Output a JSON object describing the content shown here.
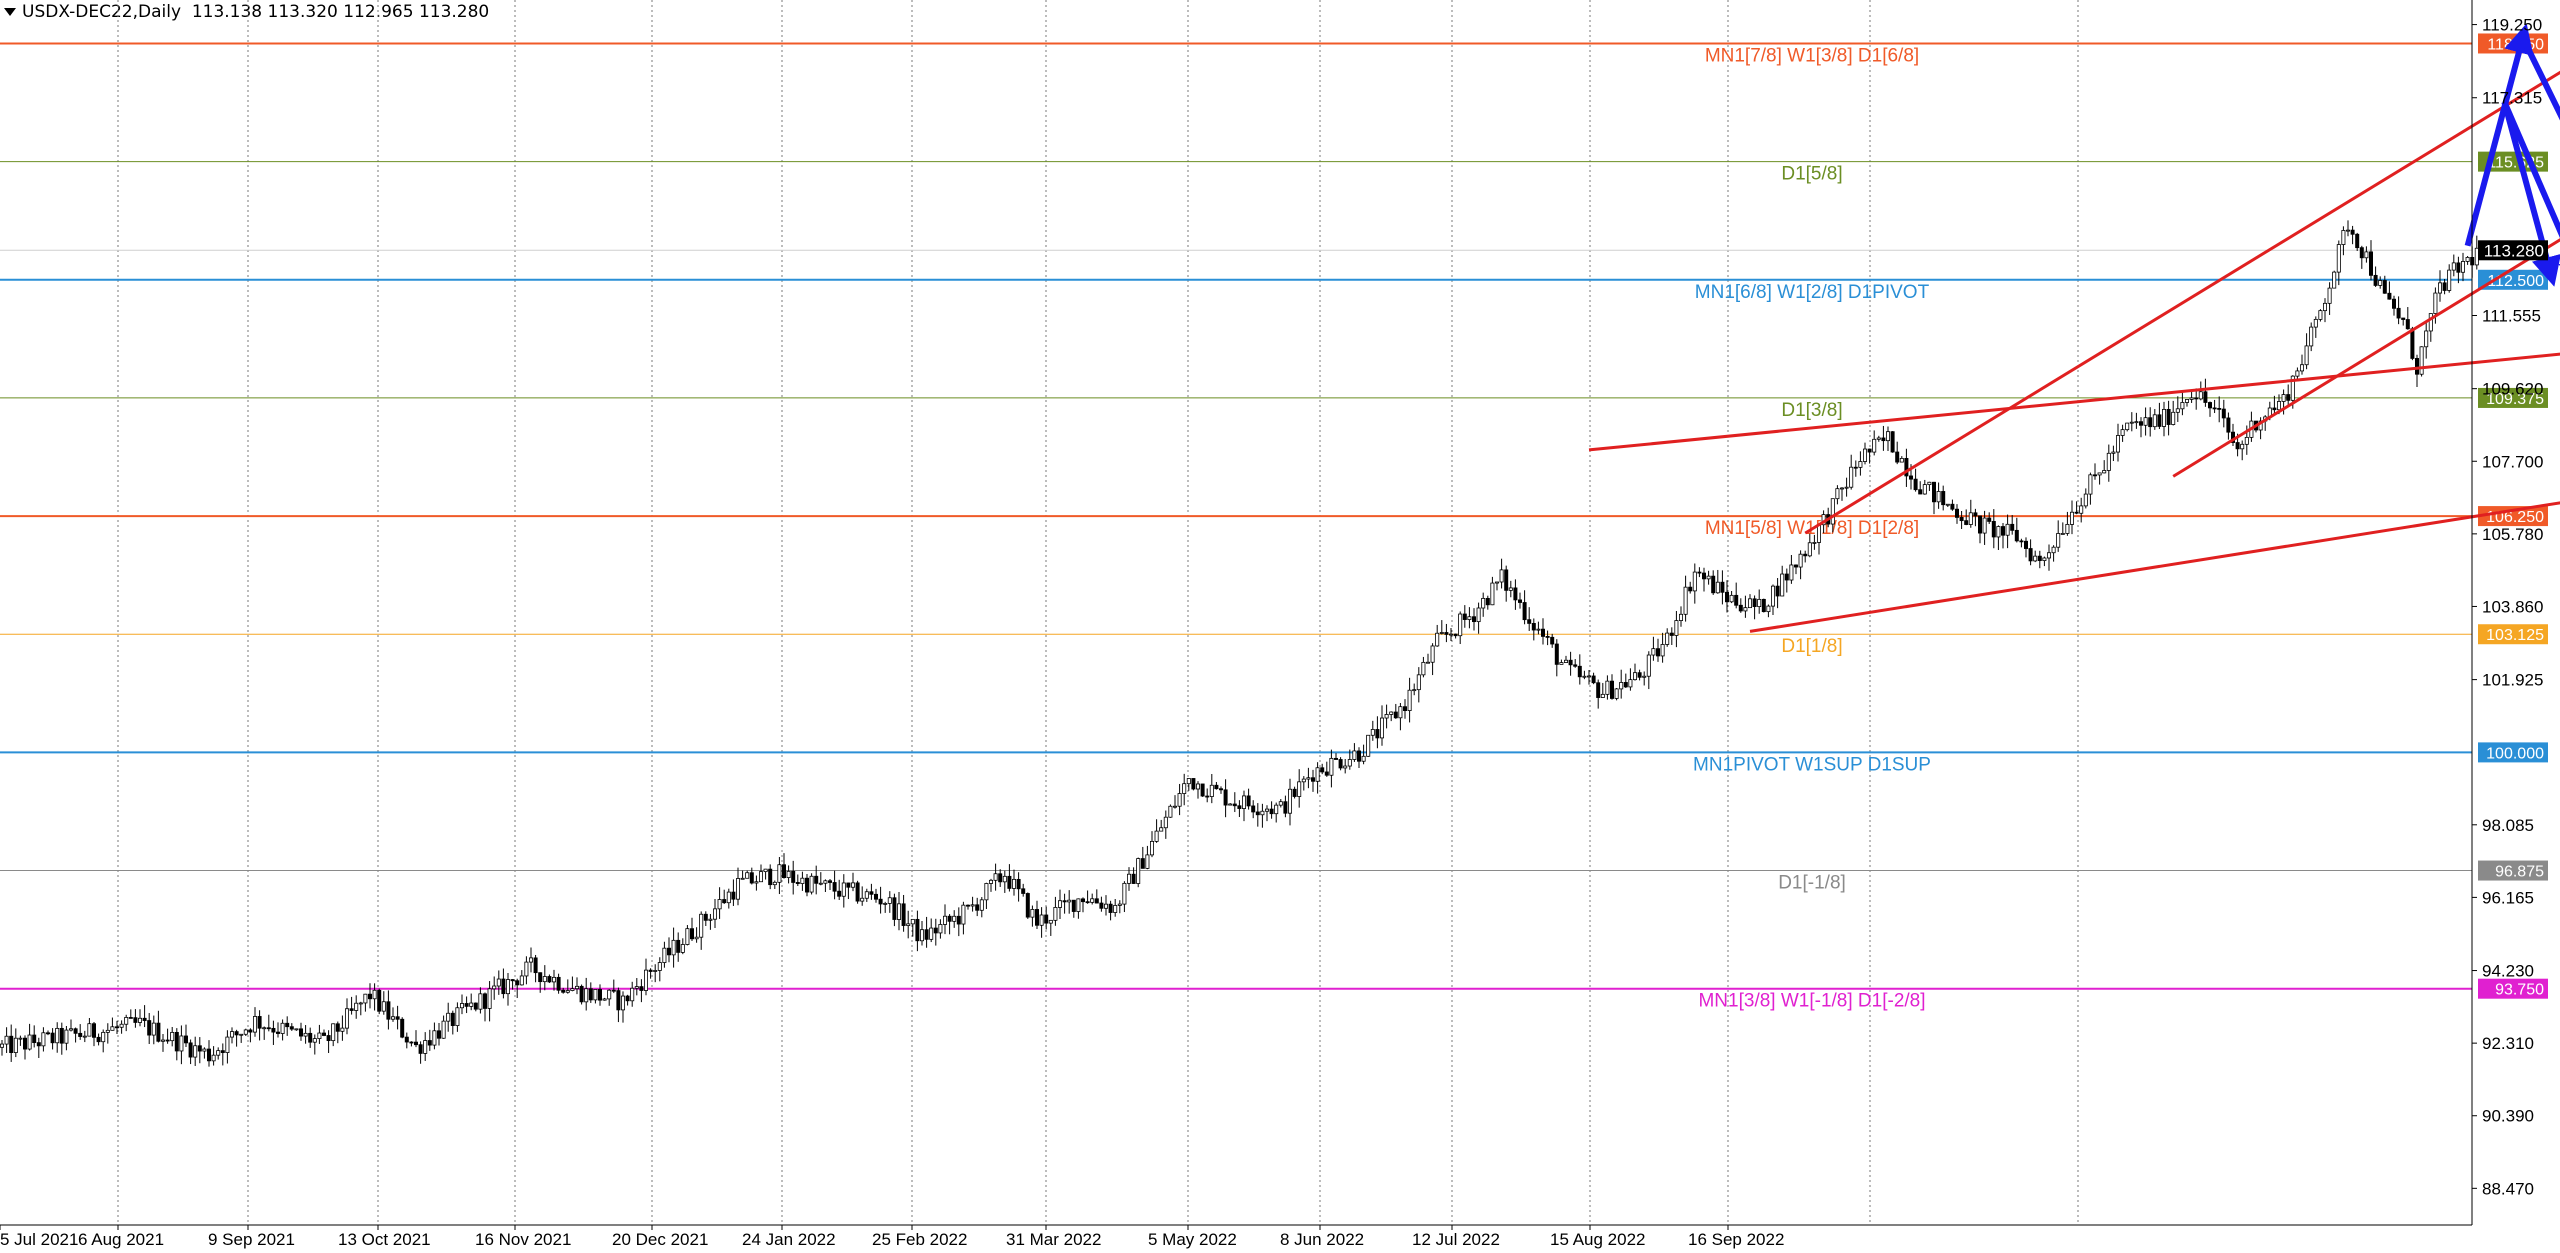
{
  "header": {
    "symbol": "USDX-DEC22,Daily",
    "ohlc": "113.138 113.320 112.965 113.280"
  },
  "chart_data": {
    "type": "candlestick",
    "ylim": [
      87.5,
      119.9
    ],
    "y_ticks": [
      "119.250",
      "117.315",
      "111.555",
      "109.620",
      "107.700",
      "105.780",
      "103.860",
      "101.925",
      "98.085",
      "96.165",
      "94.230",
      "92.310",
      "90.390",
      "88.470"
    ],
    "last_price": {
      "label": "113.280",
      "value": 113.28
    },
    "x_ticks": [
      "5 Jul 2021",
      "6 Aug 2021",
      "9 Sep 2021",
      "13 Oct 2021",
      "16 Nov 2021",
      "20 Dec 2021",
      "24 Jan 2022",
      "25 Feb 2022",
      "31 Mar 2022",
      "5 May 2022",
      "8 Jun 2022",
      "12 Jul 2022",
      "15 Aug 2022",
      "16 Sep 2022"
    ],
    "levels": [
      {
        "value": 118.75,
        "price_label": "118.750",
        "text": "MN1[7/8] W1[3/8] D1[6/8]",
        "color": "#f05a28",
        "width": 2
      },
      {
        "value": 115.625,
        "price_label": "115.625",
        "text": "D1[5/8]",
        "color": "#6b8e23",
        "width": 1
      },
      {
        "value": 112.5,
        "price_label": "112.500",
        "text": "MN1[6/8] W1[2/8] D1PIVOT",
        "color": "#2a8fd6",
        "width": 2
      },
      {
        "value": 109.375,
        "price_label": "109.375",
        "text": "D1[3/8]",
        "color": "#6b8e23",
        "width": 1
      },
      {
        "value": 106.25,
        "price_label": "106.250",
        "text": "MN1[5/8] W1[1/8] D1[2/8]",
        "color": "#f05a28",
        "width": 2
      },
      {
        "value": 103.125,
        "price_label": "103.125",
        "text": "D1[1/8]",
        "color": "#f5a623",
        "width": 1
      },
      {
        "value": 100.0,
        "price_label": "100.000",
        "text": "MN1PIVOT W1SUP D1SUP",
        "color": "#2a8fd6",
        "width": 2
      },
      {
        "value": 96.875,
        "price_label": "96.875",
        "text": "D1[-1/8]",
        "color": "#8a8a8a",
        "width": 1
      },
      {
        "value": 93.75,
        "price_label": "93.750",
        "text": "MN1[3/8] W1[-1/8] D1[-2/8]",
        "color": "#e020d0",
        "width": 2
      }
    ],
    "path_points": [
      [
        0,
        92.2
      ],
      [
        30,
        92.8
      ],
      [
        45,
        92.0
      ],
      [
        55,
        92.9
      ],
      [
        70,
        92.3
      ],
      [
        80,
        93.6
      ],
      [
        90,
        92.2
      ],
      [
        100,
        93.1
      ],
      [
        115,
        94.3
      ],
      [
        125,
        93.7
      ],
      [
        135,
        93.4
      ],
      [
        140,
        94.1
      ],
      [
        152,
        95.5
      ],
      [
        160,
        96.5
      ],
      [
        168,
        96.8
      ],
      [
        180,
        96.4
      ],
      [
        192,
        96.1
      ],
      [
        200,
        95.1
      ],
      [
        210,
        95.8
      ],
      [
        218,
        96.8
      ],
      [
        225,
        95.5
      ],
      [
        235,
        96.2
      ],
      [
        242,
        95.9
      ],
      [
        250,
        97.6
      ],
      [
        258,
        99.3
      ],
      [
        268,
        98.7
      ],
      [
        278,
        98.5
      ],
      [
        285,
        99.5
      ],
      [
        295,
        100.0
      ],
      [
        305,
        101.3
      ],
      [
        312,
        102.9
      ],
      [
        320,
        103.7
      ],
      [
        326,
        104.6
      ],
      [
        333,
        103.4
      ],
      [
        340,
        102.2
      ],
      [
        348,
        101.6
      ],
      [
        356,
        102.0
      ],
      [
        362,
        103.0
      ],
      [
        368,
        104.8
      ],
      [
        375,
        104.1
      ],
      [
        382,
        103.8
      ],
      [
        390,
        105.0
      ],
      [
        398,
        106.5
      ],
      [
        404,
        107.8
      ],
      [
        410,
        108.3
      ],
      [
        416,
        107.2
      ],
      [
        422,
        106.6
      ],
      [
        430,
        106.0
      ],
      [
        438,
        105.7
      ],
      [
        443,
        105.0
      ],
      [
        450,
        106.4
      ],
      [
        456,
        107.4
      ],
      [
        462,
        108.6
      ],
      [
        470,
        108.8
      ],
      [
        476,
        109.6
      ],
      [
        482,
        108.9
      ],
      [
        486,
        108.0
      ],
      [
        490,
        108.8
      ],
      [
        496,
        109.3
      ],
      [
        502,
        111.0
      ],
      [
        507,
        112.8
      ],
      [
        510,
        114.0
      ],
      [
        514,
        113.1
      ],
      [
        518,
        112.0
      ],
      [
        522,
        111.4
      ],
      [
        525,
        110.2
      ],
      [
        530,
        112.3
      ],
      [
        534,
        112.8
      ],
      [
        539,
        113.3
      ]
    ],
    "trend_lines": [
      {
        "name": "channel-upper",
        "points": [
          [
            345,
            108.0
          ],
          [
            670,
            111.9
          ]
        ],
        "color": "#e02020"
      },
      {
        "name": "channel-lower",
        "points": [
          [
            380,
            103.2
          ],
          [
            670,
            108.8
          ]
        ],
        "color": "#e02020"
      },
      {
        "name": "steep-upper",
        "points": [
          [
            392,
            105.8
          ],
          [
            590,
            120.5
          ]
        ],
        "color": "#e02020"
      },
      {
        "name": "steep-lower",
        "points": [
          [
            472,
            107.3
          ],
          [
            640,
            119.8
          ]
        ],
        "color": "#e02020"
      }
    ],
    "arrows": [
      {
        "points": [
          [
            536,
            113.4
          ],
          [
            548,
            118.9
          ]
        ],
        "color": "#1a1aee"
      },
      {
        "points": [
          [
            548,
            118.9
          ],
          [
            573,
            112.7
          ]
        ],
        "color": "#1a1aee"
      },
      {
        "points": [
          [
            544,
            117.2
          ],
          [
            560,
            112.7
          ]
        ],
        "color": "#1a1aee"
      },
      {
        "points": [
          [
            544,
            117.2
          ],
          [
            554,
            112.7
          ]
        ],
        "color": "#1a1aee"
      }
    ]
  }
}
